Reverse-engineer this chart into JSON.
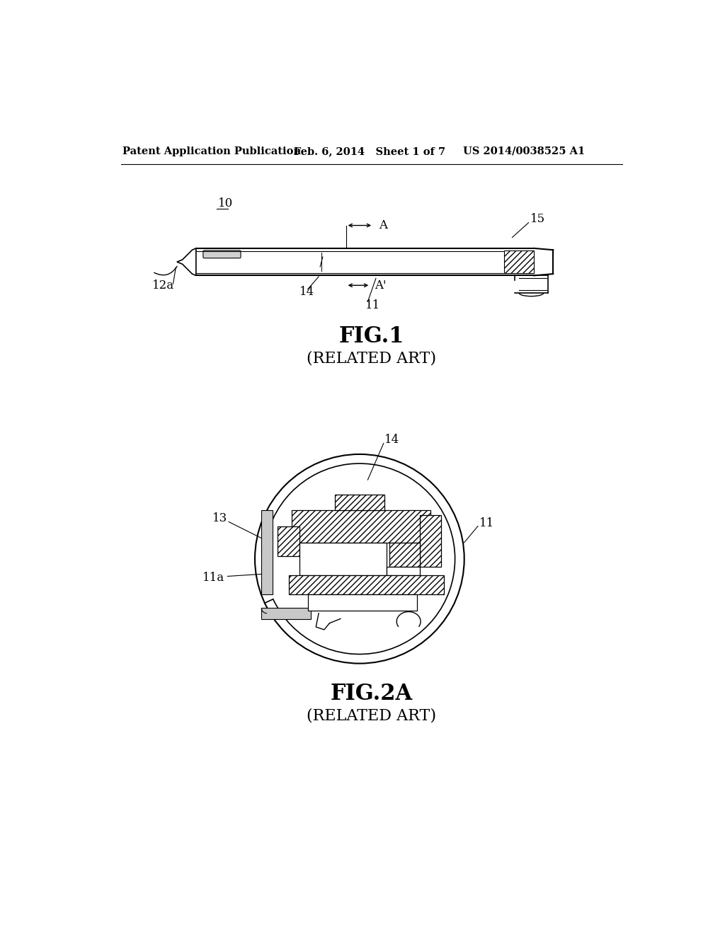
{
  "bg_color": "#ffffff",
  "header_left": "Patent Application Publication",
  "header_mid": "Feb. 6, 2014   Sheet 1 of 7",
  "header_right": "US 2014/0038525 A1",
  "fig1_label": "FIG.1",
  "fig1_sub": "(RELATED ART)",
  "fig2_label": "FIG.2A",
  "fig2_sub": "(RELATED ART)",
  "line_color": "#000000"
}
